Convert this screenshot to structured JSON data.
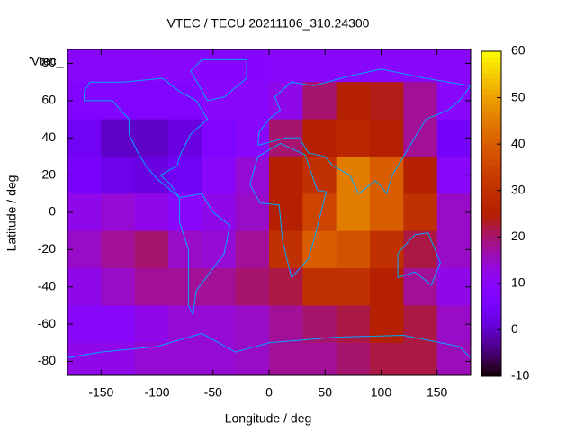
{
  "chart_data": {
    "type": "heatmap",
    "title": "VTEC / TECU 20211106_310.24300",
    "x_label": "Longitude / deg",
    "y_label": "Latitude / deg",
    "key_label": "'Vtec_",
    "x": [
      -165,
      -135,
      -105,
      -75,
      -45,
      -15,
      15,
      45,
      75,
      105,
      135,
      165
    ],
    "y": [
      80,
      60,
      40,
      20,
      0,
      -20,
      -40,
      -60,
      -80
    ],
    "z": [
      [
        10,
        10,
        10,
        10,
        9,
        9,
        10,
        10,
        10,
        10,
        10,
        10
      ],
      [
        8,
        8,
        8,
        8,
        10,
        10,
        12,
        20,
        25,
        24,
        18,
        10
      ],
      [
        4,
        0,
        0,
        2,
        8,
        10,
        20,
        25,
        27,
        25,
        18,
        5
      ],
      [
        6,
        3,
        2,
        4,
        10,
        14,
        25,
        30,
        45,
        40,
        25,
        10
      ],
      [
        12,
        14,
        12,
        10,
        12,
        15,
        25,
        35,
        45,
        40,
        30,
        15
      ],
      [
        15,
        18,
        20,
        15,
        14,
        18,
        30,
        40,
        38,
        30,
        22,
        15
      ],
      [
        12,
        15,
        18,
        18,
        18,
        20,
        22,
        30,
        30,
        25,
        18,
        12
      ],
      [
        10,
        10,
        12,
        14,
        14,
        15,
        18,
        20,
        22,
        25,
        22,
        15
      ],
      [
        12,
        12,
        14,
        14,
        14,
        15,
        18,
        18,
        20,
        22,
        22,
        16
      ]
    ],
    "xlim": [
      -180,
      180
    ],
    "ylim": [
      -87.5,
      87.5
    ],
    "xticks": [
      -150,
      -100,
      -50,
      0,
      50,
      100,
      150
    ],
    "yticks": [
      -80,
      -60,
      -40,
      -20,
      0,
      20,
      40,
      60,
      80
    ],
    "cblim": [
      -10,
      60
    ],
    "cbticks": [
      -10,
      0,
      10,
      20,
      30,
      40,
      50,
      60
    ],
    "coastline_color": "#00a8ff"
  }
}
